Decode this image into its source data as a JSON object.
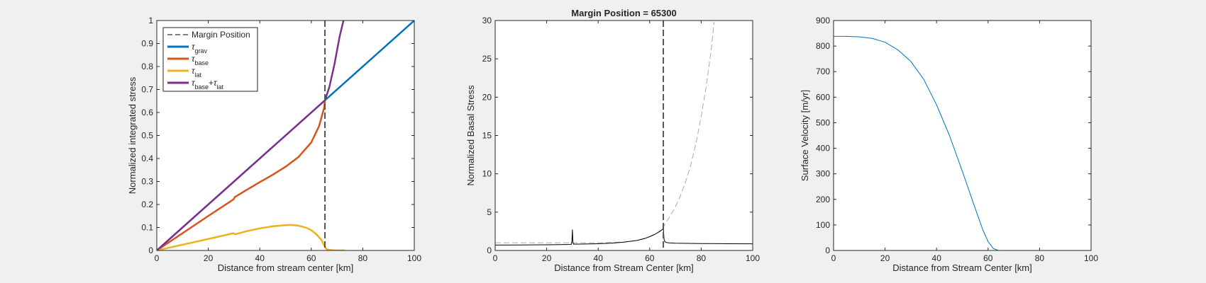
{
  "figure": {
    "background": "#f0f0f0"
  },
  "chart_data": [
    {
      "type": "line",
      "title": "",
      "xlabel": "Distance from stream center [km]",
      "ylabel": "Normalized integrated stress",
      "xlim": [
        0,
        100
      ],
      "ylim": [
        0,
        1
      ],
      "xticks": [
        "0",
        "20",
        "40",
        "60",
        "80",
        "100"
      ],
      "yticks": [
        "0",
        "0.1",
        "0.2",
        "0.3",
        "0.4",
        "0.5",
        "0.6",
        "0.7",
        "0.8",
        "0.9",
        "1"
      ],
      "grid": false,
      "legend": {
        "placement": "top-left",
        "entries": [
          {
            "label": "Margin Position",
            "color": "#555555",
            "style": "dashed",
            "tau": "",
            "subscript": ""
          },
          {
            "label": "",
            "color": "#0072bd",
            "style": "solid",
            "tau": "τ",
            "subscript": "grav"
          },
          {
            "label": "",
            "color": "#d95319",
            "style": "solid",
            "tau": "τ",
            "subscript": "base"
          },
          {
            "label": "",
            "color": "#edb120",
            "style": "solid",
            "tau": "τ",
            "subscript": "lat"
          },
          {
            "label": "",
            "color": "#7e2f8e",
            "style": "solid",
            "tau": "τ",
            "subscript": "base",
            "plus": "+",
            "tau2": "τ",
            "subscript2": "lat"
          }
        ]
      },
      "vline": {
        "x": 65.3,
        "color": "#555555",
        "style": "dashed"
      },
      "series": [
        {
          "color": "#0072bd",
          "x": [
            0,
            100
          ],
          "y": [
            0,
            1
          ]
        },
        {
          "color": "#d95319",
          "x": [
            0,
            10,
            20,
            29.8,
            30.3,
            35,
            40,
            45,
            50,
            55,
            60,
            63,
            65,
            65.3
          ],
          "y": [
            0,
            0.075,
            0.15,
            0.222,
            0.232,
            0.264,
            0.297,
            0.329,
            0.364,
            0.406,
            0.47,
            0.54,
            0.62,
            0.653
          ]
        },
        {
          "color": "#edb120",
          "x": [
            0,
            10,
            20,
            29.8,
            30.3,
            35,
            40,
            45,
            50,
            52,
            55,
            58,
            60,
            62,
            64,
            65.3,
            66,
            68,
            70,
            73
          ],
          "y": [
            0,
            0.025,
            0.05,
            0.075,
            0.07,
            0.084,
            0.096,
            0.105,
            0.11,
            0.111,
            0.108,
            0.099,
            0.088,
            0.07,
            0.045,
            0.015,
            0.005,
            0.001,
            0,
            0
          ]
        },
        {
          "color": "#7e2f8e",
          "x": [
            0,
            20,
            40,
            60,
            65.3,
            67,
            69,
            71,
            72.5
          ],
          "y": [
            0,
            0.2,
            0.4,
            0.6,
            0.653,
            0.71,
            0.81,
            0.93,
            1.0
          ]
        }
      ]
    },
    {
      "type": "line",
      "title": "Margin Position = 65300",
      "xlabel": "Distance from Stream Center [km]",
      "ylabel": "Normalized Basal Stress",
      "xlim": [
        0,
        100
      ],
      "ylim": [
        0,
        30
      ],
      "xticks": [
        "0",
        "20",
        "40",
        "60",
        "80",
        "100"
      ],
      "yticks": [
        "0",
        "5",
        "10",
        "15",
        "20",
        "25",
        "30"
      ],
      "grid": false,
      "vline": {
        "x": 65.3,
        "color": "#555555",
        "style": "dashed"
      },
      "series": [
        {
          "color": "#aaaaaa",
          "style": "dashed",
          "x": [
            0,
            10,
            20,
            30,
            40,
            50,
            55,
            60,
            63,
            65.3,
            66,
            68,
            70,
            72,
            74,
            76,
            78,
            80,
            82,
            84,
            85
          ],
          "y": [
            1.0,
            1.0,
            1.0,
            1.0,
            1.0,
            1.1,
            1.3,
            1.8,
            2.3,
            3.0,
            3.5,
            4.5,
            5.7,
            7.2,
            9.0,
            11.2,
            14.0,
            17.5,
            21.5,
            26.5,
            29.8
          ]
        },
        {
          "color": "#000000",
          "style": "solid",
          "x": [
            0,
            10,
            20,
            29.5,
            29.8,
            30,
            30.2,
            30.5,
            35,
            40,
            45,
            50,
            55,
            58,
            60,
            62,
            64,
            65,
            65.3,
            65.6,
            66,
            67,
            68,
            70,
            75,
            80,
            90,
            100
          ],
          "y": [
            0.7,
            0.72,
            0.74,
            0.78,
            1.2,
            2.7,
            1.0,
            0.82,
            0.84,
            0.88,
            0.95,
            1.08,
            1.3,
            1.55,
            1.8,
            2.1,
            2.5,
            2.75,
            2.9,
            1.4,
            1.1,
            1.0,
            0.98,
            0.95,
            0.92,
            0.9,
            0.88,
            0.87
          ]
        }
      ]
    },
    {
      "type": "line",
      "title": "",
      "xlabel": "Distance from Stream Center [km]",
      "ylabel": "Surface Velocity [m/yr]",
      "xlim": [
        0,
        100
      ],
      "ylim": [
        0,
        900
      ],
      "xticks": [
        "0",
        "20",
        "40",
        "60",
        "80",
        "100"
      ],
      "yticks": [
        "0",
        "100",
        "200",
        "300",
        "400",
        "500",
        "600",
        "700",
        "800",
        "900"
      ],
      "grid": false,
      "series": [
        {
          "color": "#0072bd",
          "style": "solid",
          "x": [
            0,
            5,
            10,
            15,
            20,
            25,
            30,
            35,
            40,
            45,
            50,
            55,
            58,
            60,
            62,
            64,
            66,
            70,
            80,
            100
          ],
          "y": [
            838,
            838,
            836,
            830,
            815,
            785,
            740,
            670,
            570,
            450,
            310,
            165,
            80,
            35,
            8,
            0,
            0,
            0,
            0,
            0
          ]
        }
      ]
    }
  ]
}
